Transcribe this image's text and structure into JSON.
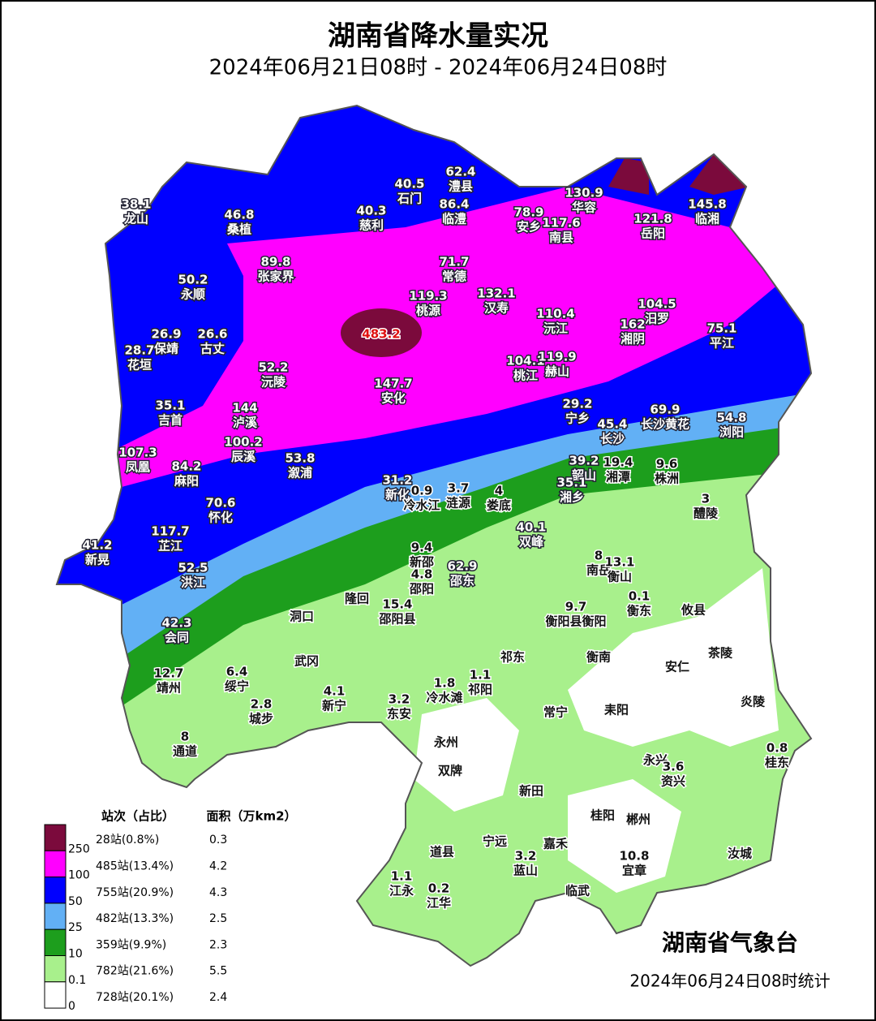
{
  "header": {
    "title": "湖南省降水量实况",
    "subtitle": "2024年06月21日08时 - 2024年06月24日08时"
  },
  "map": {
    "peak": 483.2,
    "stations": [
      {
        "value": 38.1,
        "name": "龙山"
      },
      {
        "value": 46.8,
        "name": "桑植"
      },
      {
        "value": 40.3,
        "name": "慈利"
      },
      {
        "value": 40.5,
        "name": "石门"
      },
      {
        "value": 62.4,
        "name": "澧县"
      },
      {
        "value": 86.4,
        "name": "临澧"
      },
      {
        "value": 78.9,
        "name": "安乡"
      },
      {
        "value": 130.9,
        "name": "华容"
      },
      {
        "value": 117.6,
        "name": "南县"
      },
      {
        "value": 121.8,
        "name": "岳阳"
      },
      {
        "value": 145.8,
        "name": "临湘"
      },
      {
        "value": 89.8,
        "name": "张家界"
      },
      {
        "value": 71.7,
        "name": "常德"
      },
      {
        "value": 50.2,
        "name": "永顺"
      },
      {
        "value": 119.3,
        "name": "桃源"
      },
      {
        "value": 132.1,
        "name": "汉寿"
      },
      {
        "value": 104.5,
        "name": "汨罗"
      },
      {
        "value": 110.4,
        "name": "沅江"
      },
      {
        "value": 162,
        "name": "湘阴"
      },
      {
        "value": 75.1,
        "name": "平江"
      },
      {
        "value": 26.9,
        "name": "保靖"
      },
      {
        "value": 26.6,
        "name": "古丈"
      },
      {
        "value": 28.7,
        "name": "花垣"
      },
      {
        "value": 52.2,
        "name": "沅陵"
      },
      {
        "value": 104.1,
        "name": "桃江"
      },
      {
        "value": 119.9,
        "name": "赫山"
      },
      {
        "value": 147.7,
        "name": "安化"
      },
      {
        "value": 29.2,
        "name": "宁乡"
      },
      {
        "value": 35.1,
        "name": "吉首"
      },
      {
        "value": 144,
        "name": "泸溪"
      },
      {
        "value": 69.9,
        "name": "长沙黄花"
      },
      {
        "value": 54.8,
        "name": "浏阳"
      },
      {
        "value": 45.4,
        "name": "长沙"
      },
      {
        "value": 107.3,
        "name": "凤凰"
      },
      {
        "value": 84.2,
        "name": "麻阳"
      },
      {
        "value": 100.2,
        "name": "辰溪"
      },
      {
        "value": 53.8,
        "name": "溆浦"
      },
      {
        "value": 39.2,
        "name": "韶山"
      },
      {
        "value": 19.4,
        "name": "湘潭"
      },
      {
        "value": 9.6,
        "name": "株洲"
      },
      {
        "value": 35.1,
        "name": "湘乡"
      },
      {
        "value": 31.2,
        "name": "新化"
      },
      {
        "value": 0.9,
        "name": "冷水江"
      },
      {
        "value": 3.7,
        "name": "涟源"
      },
      {
        "value": 4,
        "name": "娄底"
      },
      {
        "value": 3,
        "name": "醴陵"
      },
      {
        "value": 70.6,
        "name": "怀化"
      },
      {
        "value": 40.1,
        "name": "双峰"
      },
      {
        "value": 117.7,
        "name": "芷江"
      },
      {
        "value": 41.2,
        "name": "新晃"
      },
      {
        "value": 9.4,
        "name": "新邵"
      },
      {
        "value": 4.8,
        "name": "邵阳"
      },
      {
        "value": 62.9,
        "name": "邵东"
      },
      {
        "value": 8,
        "name": "南岳"
      },
      {
        "value": 13.1,
        "name": "衡山"
      },
      {
        "value": 52.5,
        "name": "洪江"
      },
      {
        "value": 9.7,
        "name": "衡阳县衡阳"
      },
      {
        "value": 0.1,
        "name": "衡东"
      },
      {
        "name": "攸县"
      },
      {
        "value": 15.4,
        "name": "邵阳县"
      },
      {
        "name": "隆回"
      },
      {
        "name": "洞口"
      },
      {
        "value": 42.3,
        "name": "会同"
      },
      {
        "name": "茶陵"
      },
      {
        "name": "祁东"
      },
      {
        "name": "衡南"
      },
      {
        "name": "武冈"
      },
      {
        "name": "安仁"
      },
      {
        "value": 12.7,
        "name": "靖州"
      },
      {
        "value": 6.4,
        "name": "绥宁"
      },
      {
        "value": 1.8,
        "name": "冷水滩"
      },
      {
        "value": 1.1,
        "name": "祁阳"
      },
      {
        "value": 4.1,
        "name": "新宁"
      },
      {
        "name": "炎陵"
      },
      {
        "value": 2.8,
        "name": "城步"
      },
      {
        "value": 3.2,
        "name": "东安"
      },
      {
        "name": "常宁"
      },
      {
        "name": "耒阳"
      },
      {
        "value": 8,
        "name": "通道"
      },
      {
        "name": "永州"
      },
      {
        "value": 0.8,
        "name": "桂东"
      },
      {
        "name": "永兴"
      },
      {
        "value": 3.6,
        "name": "资兴"
      },
      {
        "name": "双牌"
      },
      {
        "name": "新田"
      },
      {
        "name": "桂阳"
      },
      {
        "name": "郴州"
      },
      {
        "name": "宁远"
      },
      {
        "name": "道县"
      },
      {
        "name": "嘉禾"
      },
      {
        "value": 3.2,
        "name": "蓝山"
      },
      {
        "name": "汝城"
      },
      {
        "value": 10.8,
        "name": "宜章"
      },
      {
        "value": 1.1,
        "name": "江永"
      },
      {
        "value": 0.2,
        "name": "江华"
      },
      {
        "name": "临武"
      }
    ]
  },
  "legend": {
    "header_count": "站次（占比）",
    "header_area": "面积（万km2）",
    "thresholds": [
      250,
      100,
      50,
      25,
      10,
      0.1,
      0
    ],
    "classes": [
      {
        "color": "#7b0a3c",
        "count": "28站(0.8%)",
        "area": 0.3
      },
      {
        "color": "#ff00ff",
        "count": "485站(13.4%)",
        "area": 4.2
      },
      {
        "color": "#0000ff",
        "count": "755站(20.9%)",
        "area": 4.3
      },
      {
        "color": "#62b0f5",
        "count": "482站(13.3%)",
        "area": 2.5
      },
      {
        "color": "#1d9e1d",
        "count": "359站(9.9%)",
        "area": 2.3
      },
      {
        "color": "#a8f08c",
        "count": "782站(21.6%)",
        "area": 5.5
      },
      {
        "color": "#ffffff",
        "count": "728站(20.1%)",
        "area": 2.4
      }
    ]
  },
  "footer": {
    "agency": "湖南省气象台",
    "timestamp": "2024年06月24日08时统计"
  }
}
